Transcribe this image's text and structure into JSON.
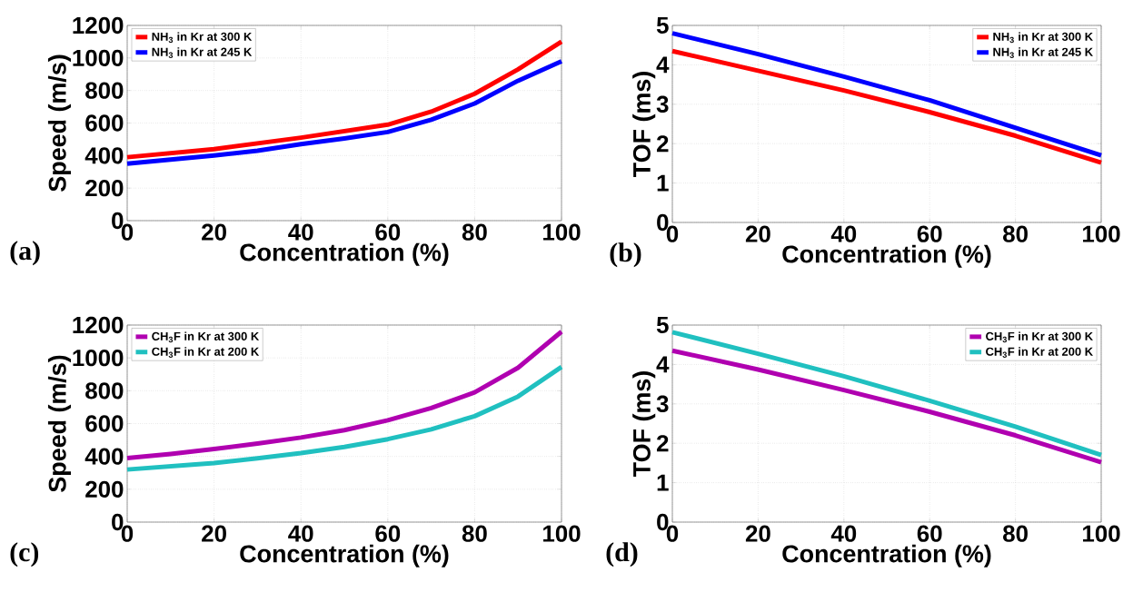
{
  "chart_data": [
    {
      "type": "line",
      "xlabel": "Concentration (%)",
      "ylabel": "Speed (m/s)",
      "annotations": [
        "(a)"
      ],
      "xlim": [
        0,
        100
      ],
      "ylim": [
        0,
        1200
      ],
      "xticks": [
        0,
        20,
        40,
        60,
        80,
        100
      ],
      "yticks": [
        0,
        200,
        400,
        600,
        800,
        1000,
        1200
      ],
      "grid": true,
      "legend": "top left",
      "x": [
        0,
        10,
        20,
        30,
        40,
        50,
        60,
        70,
        80,
        90,
        100
      ],
      "series": [
        {
          "name": "NH$_{3}$ in Kr at 300 K",
          "color": "#ff0000",
          "values": [
            390,
            415,
            440,
            475,
            510,
            550,
            590,
            670,
            780,
            930,
            1100
          ]
        },
        {
          "name": "NH$_{3}$ in Kr at 245 K",
          "color": "#0000ff",
          "values": [
            350,
            375,
            400,
            430,
            470,
            505,
            545,
            620,
            720,
            860,
            980
          ]
        }
      ]
    },
    {
      "type": "line",
      "xlabel": "Concentration (%)",
      "ylabel": "TOF (ms)",
      "annotations": [
        "(b)"
      ],
      "xlim": [
        0,
        100
      ],
      "ylim": [
        0,
        5
      ],
      "xticks": [
        0,
        20,
        40,
        60,
        80,
        100
      ],
      "yticks": [
        0,
        1,
        2,
        3,
        4,
        5
      ],
      "grid": true,
      "legend": "top right",
      "x": [
        0,
        20,
        40,
        60,
        80,
        100
      ],
      "series": [
        {
          "name": "NH$_{3}$ in Kr at 300 K",
          "color": "#ff0000",
          "values": [
            4.35,
            3.85,
            3.35,
            2.8,
            2.2,
            1.52
          ]
        },
        {
          "name": "NH$_{3}$ in Kr at 245 K",
          "color": "#0000ff",
          "values": [
            4.8,
            4.27,
            3.7,
            3.1,
            2.4,
            1.7
          ]
        }
      ]
    },
    {
      "type": "line",
      "xlabel": "Concentration (%)",
      "ylabel": "Speed (m/s)",
      "annotations": [
        "(c)"
      ],
      "xlim": [
        0,
        100
      ],
      "ylim": [
        0,
        1200
      ],
      "xticks": [
        0,
        20,
        40,
        60,
        80,
        100
      ],
      "yticks": [
        0,
        200,
        400,
        600,
        800,
        1000,
        1200
      ],
      "grid": true,
      "legend": "top left",
      "x": [
        0,
        10,
        20,
        30,
        40,
        50,
        60,
        70,
        80,
        90,
        100
      ],
      "series": [
        {
          "name": "CH$_{3}$F in Kr at 300 K",
          "color": "#b000b0",
          "values": [
            390,
            415,
            445,
            478,
            515,
            560,
            620,
            695,
            790,
            940,
            1160
          ]
        },
        {
          "name": "CH$_{3}$F in Kr at 200 K",
          "color": "#20c0c0",
          "values": [
            320,
            340,
            360,
            388,
            420,
            458,
            505,
            565,
            645,
            765,
            945
          ]
        }
      ]
    },
    {
      "type": "line",
      "xlabel": "Concentration (%)",
      "ylabel": "TOF (ms)",
      "annotations": [
        "(d)"
      ],
      "xlim": [
        0,
        100
      ],
      "ylim": [
        0,
        5
      ],
      "xticks": [
        0,
        20,
        40,
        60,
        80,
        100
      ],
      "yticks": [
        0,
        1,
        2,
        3,
        4,
        5
      ],
      "grid": true,
      "legend": "top right",
      "x": [
        0,
        20,
        40,
        60,
        80,
        100
      ],
      "series": [
        {
          "name": "CH$_{3}$F in Kr at 300 K",
          "color": "#b000b0",
          "values": [
            4.35,
            3.87,
            3.35,
            2.8,
            2.2,
            1.52
          ]
        },
        {
          "name": "CH$_{3}$F in Kr at 200 K",
          "color": "#20c0c0",
          "values": [
            4.82,
            4.27,
            3.7,
            3.08,
            2.42,
            1.7
          ]
        }
      ]
    }
  ]
}
